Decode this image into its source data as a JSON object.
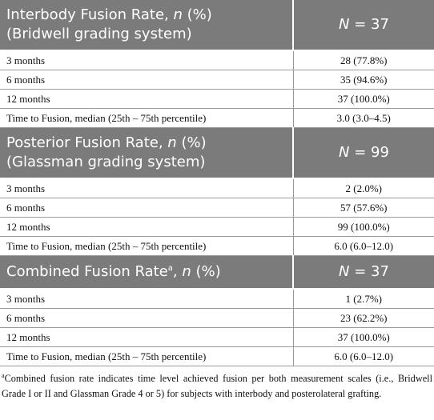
{
  "sections": [
    {
      "header": {
        "title": [
          "Interbody Fusion Rate, ",
          "n",
          " (%)"
        ],
        "subtitle": "(Bridwell grading system)",
        "n": [
          "N",
          " = 37"
        ]
      },
      "rows": [
        [
          "3 months",
          "28 (77.8%)"
        ],
        [
          "6 months",
          "35 (94.6%)"
        ],
        [
          "12 months",
          "37 (100.0%)"
        ],
        [
          "Time to Fusion, median (25th – 75th percentile)",
          "3.0 (3.0–4.5)"
        ]
      ]
    },
    {
      "header": {
        "title": [
          "Posterior Fusion Rate, ",
          "n",
          " (%)"
        ],
        "subtitle": "(Glassman grading system)",
        "n": [
          "N",
          " = 99"
        ]
      },
      "rows": [
        [
          "3 months",
          "2 (2.0%)"
        ],
        [
          "6 months",
          "57 (57.6%)"
        ],
        [
          "12 months",
          "99 (100.0%)"
        ],
        [
          "Time to Fusion, median (25th – 75th percentile)",
          "6.0 (6.0–12.0)"
        ]
      ]
    },
    {
      "header": {
        "title": [
          "Combined Fusion Rate",
          "a",
          ", ",
          "n",
          " (%)"
        ],
        "n": [
          "N",
          " = 37"
        ]
      },
      "rows": [
        [
          "3 months",
          "1 (2.7%)"
        ],
        [
          "6 months",
          "23 (62.2%)"
        ],
        [
          "12 months",
          "37 (100.0%)"
        ],
        [
          "Time to Fusion, median (25th – 75th percentile)",
          "6.0 (6.0–12.0)"
        ]
      ]
    }
  ],
  "footnote": [
    "a",
    "Combined fusion rate indicates time level achieved fusion per both measurement scales (i.e., Bridwell Grade I or II and Glassman Grade 4 or 5) for subjects with interbody and posterolateral grafting."
  ]
}
